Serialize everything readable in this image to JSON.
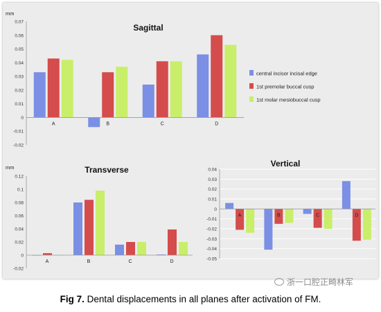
{
  "caption": {
    "label": "Fig 7.",
    "text": "Dental displacements in all planes after activation of FM."
  },
  "watermark": "浙一口腔正畸林军",
  "colors": {
    "central": "#7b8fe4",
    "premolar": "#d44c4c",
    "molar": "#c9ee6a",
    "panel": "#ececec",
    "axis": "#9a9a9a",
    "gridline": "#ffffff"
  },
  "chart_data": [
    {
      "id": "sagittal",
      "type": "bar",
      "title": "Sagittal",
      "ylabel": "mm",
      "categories": [
        "A",
        "B",
        "C",
        "D"
      ],
      "ylim": [
        -0.02,
        0.07
      ],
      "yticks": [
        "0.07",
        "0.06",
        "0.05",
        "0.04",
        "0.03",
        "0.02",
        "0.01",
        "0",
        "-0.01",
        "-0.02"
      ],
      "grid": false,
      "legend": "right",
      "series": [
        {
          "name": "central incisor incisal edge",
          "values": [
            0.033,
            -0.007,
            0.024,
            0.046
          ]
        },
        {
          "name": "1st premolar buccal cusp",
          "values": [
            0.043,
            0.033,
            0.041,
            0.06
          ]
        },
        {
          "name": "1st molar mesiobuccal cusp",
          "values": [
            0.042,
            0.037,
            0.041,
            0.053
          ]
        }
      ]
    },
    {
      "id": "transverse",
      "type": "bar",
      "title": "Transverse",
      "ylabel": "mm",
      "categories": [
        "A",
        "B",
        "C",
        "D"
      ],
      "ylim": [
        -0.02,
        0.12
      ],
      "yticks": [
        "0.12",
        "0.1",
        "0.08",
        "0.06",
        "0.04",
        "0.02",
        "0",
        "-0.02"
      ],
      "grid": false,
      "series": [
        {
          "name": "central incisor incisal edge",
          "values": [
            0.0,
            0.08,
            0.016,
            0.001
          ]
        },
        {
          "name": "1st premolar buccal cusp",
          "values": [
            0.003,
            0.084,
            0.02,
            0.039
          ]
        },
        {
          "name": "1st molar mesiobuccal cusp",
          "values": [
            0.0,
            0.098,
            0.02,
            0.02
          ]
        }
      ]
    },
    {
      "id": "vertical",
      "type": "bar",
      "title": "Vertical",
      "ylabel": "",
      "categories": [
        "A",
        "B",
        "C",
        "D"
      ],
      "ylim": [
        -0.05,
        0.04
      ],
      "yticks": [
        "0.04",
        "0.03",
        "0.02",
        "0.01",
        "0",
        "-0.01",
        "-0.02",
        "-0.03",
        "-0.04",
        "-0.05"
      ],
      "grid": true,
      "series": [
        {
          "name": "central incisor incisal edge",
          "values": [
            0.006,
            -0.041,
            -0.005,
            0.028
          ]
        },
        {
          "name": "1st premolar buccal cusp",
          "values": [
            -0.021,
            -0.015,
            -0.019,
            -0.032
          ]
        },
        {
          "name": "1st molar mesiobuccal cusp",
          "values": [
            -0.024,
            -0.014,
            -0.02,
            -0.031
          ]
        }
      ]
    }
  ]
}
